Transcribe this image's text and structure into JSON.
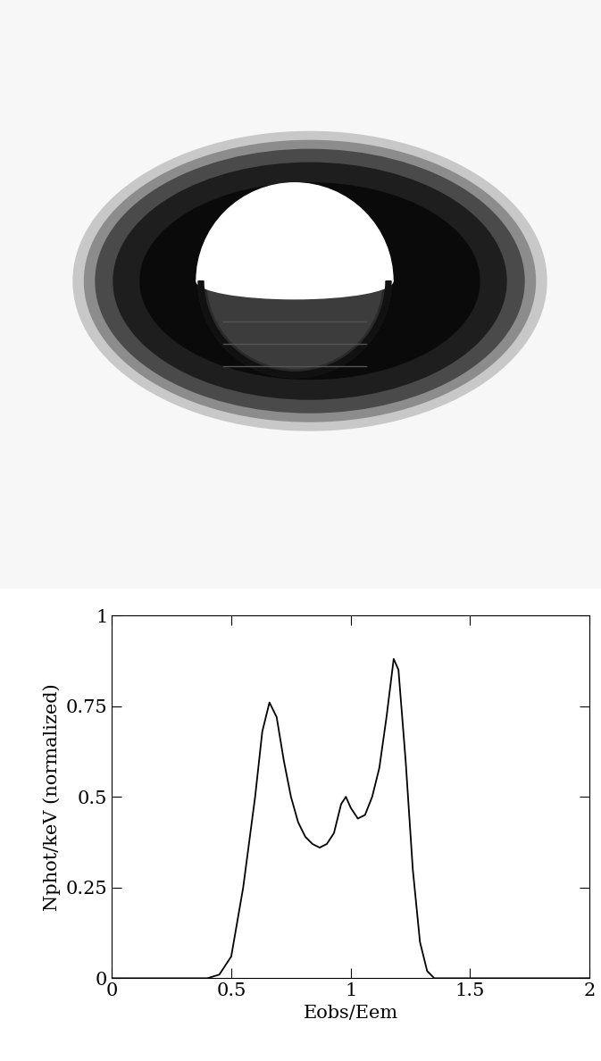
{
  "chart_data": {
    "type": "line",
    "xlabel": "Eobs/Eem",
    "ylabel": "Nphot/keV (normalized)",
    "x": [
      0,
      0.4,
      0.45,
      0.5,
      0.55,
      0.6,
      0.63,
      0.66,
      0.69,
      0.72,
      0.75,
      0.78,
      0.81,
      0.84,
      0.87,
      0.9,
      0.93,
      0.96,
      0.98,
      1.0,
      1.03,
      1.06,
      1.09,
      1.12,
      1.15,
      1.18,
      1.2,
      1.23,
      1.26,
      1.29,
      1.32,
      1.35,
      2
    ],
    "values": [
      0,
      0,
      0.01,
      0.06,
      0.25,
      0.5,
      0.68,
      0.76,
      0.72,
      0.6,
      0.5,
      0.43,
      0.39,
      0.37,
      0.36,
      0.37,
      0.4,
      0.48,
      0.5,
      0.47,
      0.44,
      0.45,
      0.5,
      0.58,
      0.72,
      0.88,
      0.85,
      0.6,
      0.3,
      0.1,
      0.02,
      0,
      0
    ],
    "color": "#000000",
    "xlim": [
      0,
      2
    ],
    "ylim": [
      0,
      1
    ],
    "xticks": [
      0,
      0.5,
      1,
      1.5,
      2
    ],
    "yticks": [
      0,
      0.25,
      0.5,
      0.75,
      1
    ],
    "grid": false
  }
}
